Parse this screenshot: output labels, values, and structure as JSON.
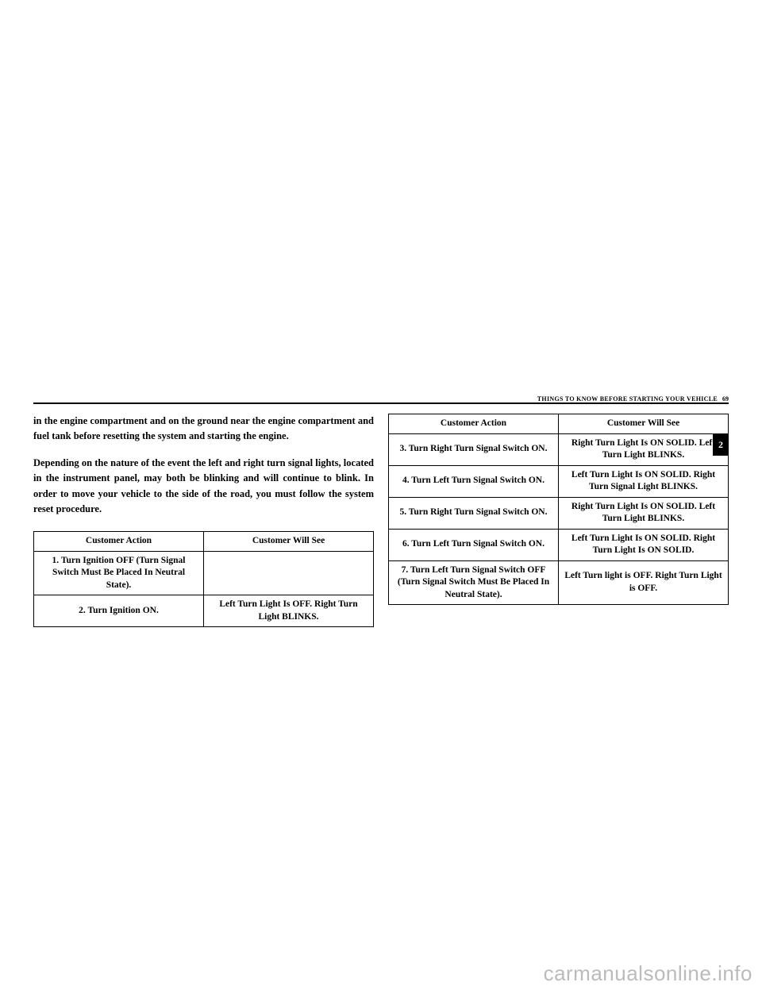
{
  "header": {
    "section_title": "THINGS TO KNOW BEFORE STARTING YOUR VEHICLE",
    "page_number": "69",
    "tab_number": "2"
  },
  "left_column": {
    "para1": "in the engine compartment and on the ground near the engine compartment and fuel tank before resetting the system and starting the engine.",
    "para2": "Depending on the nature of the event the left and right turn signal lights, located in the instrument panel, may both be blinking and will continue to blink. In order to move your vehicle to the side of the road, you must follow the system reset procedure."
  },
  "table_headers": {
    "action": "Customer Action",
    "see": "Customer Will See"
  },
  "left_table_rows": [
    {
      "action": "1. Turn Ignition OFF (Turn Signal Switch Must Be Placed In Neutral State).",
      "see": ""
    },
    {
      "action": "2. Turn Ignition ON.",
      "see": "Left Turn Light Is OFF. Right Turn Light BLINKS."
    }
  ],
  "right_table_rows": [
    {
      "action": "3. Turn Right Turn Signal Switch ON.",
      "see": "Right Turn Light Is ON SOLID. Left Turn Light BLINKS."
    },
    {
      "action": "4. Turn Left Turn Signal Switch ON.",
      "see": "Left Turn Light Is ON SOLID. Right Turn Signal Light BLINKS."
    },
    {
      "action": "5. Turn Right Turn Signal Switch ON.",
      "see": "Right Turn Light Is ON SOLID. Left Turn Light BLINKS."
    },
    {
      "action": "6. Turn Left Turn Signal Switch ON.",
      "see": "Left Turn Light Is ON SOLID. Right Turn Light Is ON SOLID."
    },
    {
      "action": "7. Turn Left Turn Signal Switch OFF (Turn Signal Switch Must Be Placed In Neutral State).",
      "see": "Left Turn light is OFF. Right Turn Light is OFF."
    }
  ],
  "watermark": "carmanualsonline.info"
}
